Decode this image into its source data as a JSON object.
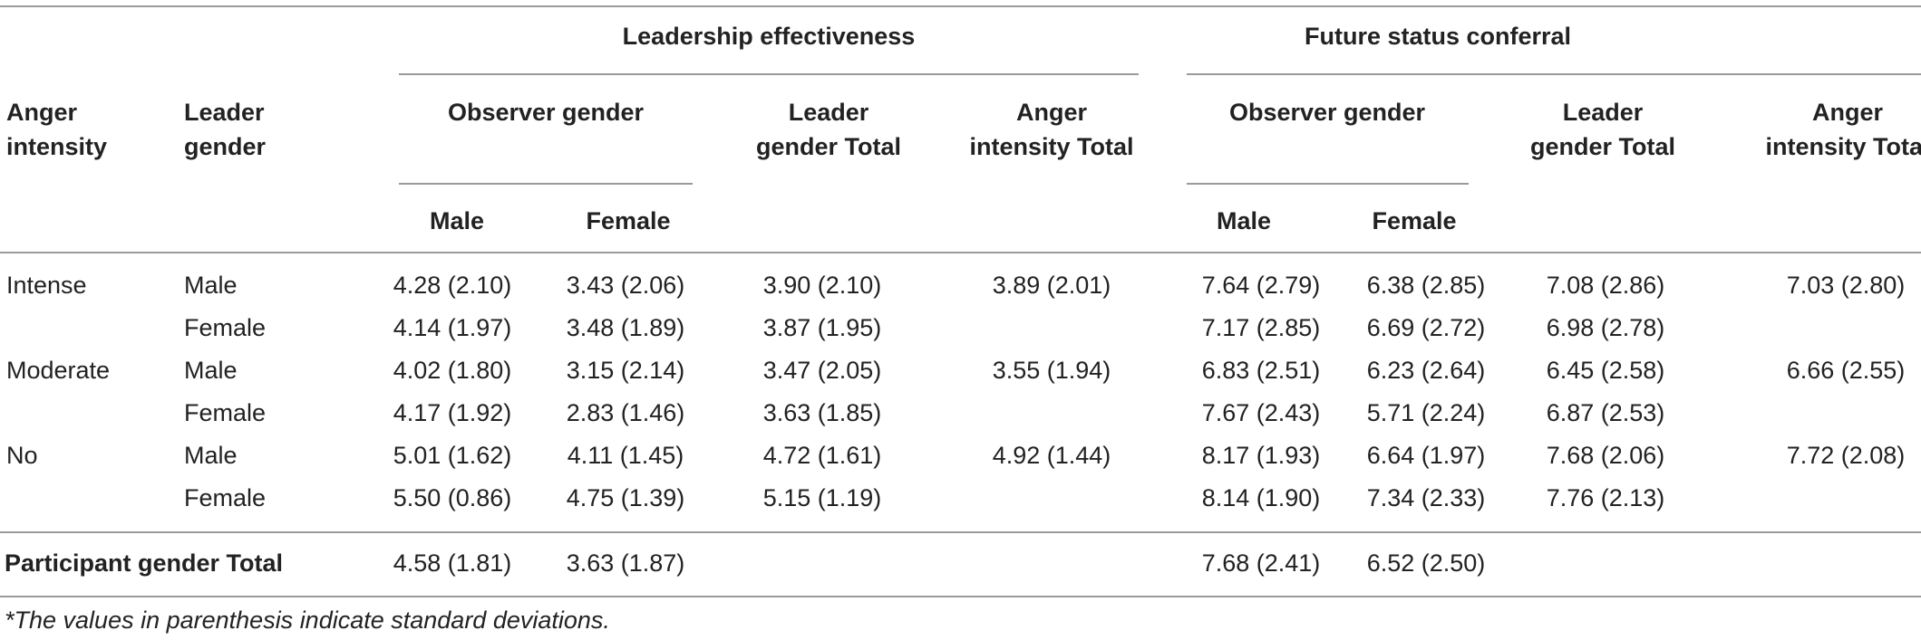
{
  "header": {
    "group1": "Leadership effectiveness",
    "group2": "Future status conferral",
    "anger_intensity": [
      "Anger",
      "intensity"
    ],
    "leader_gender": [
      "Leader",
      "gender"
    ],
    "observer_gender": "Observer gender",
    "leader_gender_total": [
      "Leader",
      "gender Total"
    ],
    "anger_intensity_total": [
      "Anger",
      "intensity Total"
    ],
    "male": "Male",
    "female": "Female"
  },
  "rows": [
    {
      "anger": "Intense",
      "gender": "Male",
      "le_male": "4.28 (2.10)",
      "le_female": "3.43 (2.06)",
      "le_lg_total": "3.90 (2.10)",
      "le_ai_total": "3.89 (2.01)",
      "fs_male": "7.64 (2.79)",
      "fs_female": "6.38 (2.85)",
      "fs_lg_total": "7.08 (2.86)",
      "fs_ai_total": "7.03 (2.80)"
    },
    {
      "anger": "",
      "gender": "Female",
      "le_male": "4.14 (1.97)",
      "le_female": "3.48 (1.89)",
      "le_lg_total": "3.87 (1.95)",
      "le_ai_total": "",
      "fs_male": "7.17 (2.85)",
      "fs_female": "6.69 (2.72)",
      "fs_lg_total": "6.98 (2.78)",
      "fs_ai_total": ""
    },
    {
      "anger": "Moderate",
      "gender": "Male",
      "le_male": "4.02 (1.80)",
      "le_female": "3.15 (2.14)",
      "le_lg_total": "3.47 (2.05)",
      "le_ai_total": "3.55 (1.94)",
      "fs_male": "6.83 (2.51)",
      "fs_female": "6.23 (2.64)",
      "fs_lg_total": "6.45 (2.58)",
      "fs_ai_total": "6.66 (2.55)"
    },
    {
      "anger": "",
      "gender": "Female",
      "le_male": "4.17 (1.92)",
      "le_female": "2.83 (1.46)",
      "le_lg_total": "3.63 (1.85)",
      "le_ai_total": "",
      "fs_male": "7.67 (2.43)",
      "fs_female": "5.71 (2.24)",
      "fs_lg_total": "6.87 (2.53)",
      "fs_ai_total": ""
    },
    {
      "anger": "No",
      "gender": "Male",
      "le_male": "5.01 (1.62)",
      "le_female": "4.11 (1.45)",
      "le_lg_total": "4.72 (1.61)",
      "le_ai_total": "4.92 (1.44)",
      "fs_male": "8.17 (1.93)",
      "fs_female": "6.64 (1.97)",
      "fs_lg_total": "7.68 (2.06)",
      "fs_ai_total": "7.72 (2.08)"
    },
    {
      "anger": "",
      "gender": "Female",
      "le_male": "5.50 (0.86)",
      "le_female": "4.75 (1.39)",
      "le_lg_total": "5.15 (1.19)",
      "le_ai_total": "",
      "fs_male": "8.14 (1.90)",
      "fs_female": "7.34 (2.33)",
      "fs_lg_total": "7.76 (2.13)",
      "fs_ai_total": ""
    }
  ],
  "total_row": {
    "label": "Participant gender Total",
    "le_male": "4.58 (1.81)",
    "le_female": "3.63 (1.87)",
    "fs_male": "7.68 (2.41)",
    "fs_female": "6.52 (2.50)"
  },
  "footnote": "*The values in parenthesis indicate standard deviations."
}
